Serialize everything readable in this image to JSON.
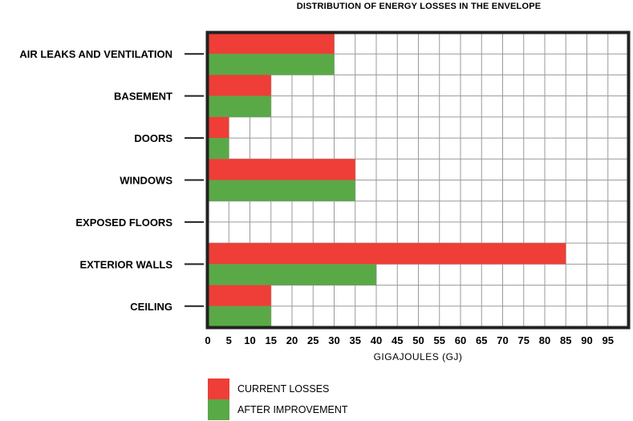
{
  "chart_data": {
    "type": "bar",
    "orientation": "horizontal",
    "title": "DISTRIBUTION OF ENERGY LOSSES IN THE ENVELOPE",
    "xlabel": "GIGAJOULES (GJ)",
    "ylabel": "",
    "xlim": [
      0,
      100
    ],
    "xticks": [
      0,
      5,
      10,
      15,
      20,
      25,
      30,
      35,
      40,
      45,
      50,
      55,
      60,
      65,
      70,
      75,
      80,
      85,
      90,
      95
    ],
    "grid": true,
    "legend_position": "bottom",
    "categories": [
      "AIR LEAKS AND VENTILATION",
      "BASEMENT",
      "DOORS",
      "WINDOWS",
      "EXPOSED FLOORS",
      "EXTERIOR WALLS",
      "CEILING"
    ],
    "series": [
      {
        "name": "CURRENT LOSSES",
        "color": "#ee3e37",
        "values": [
          30,
          15,
          5,
          35,
          0,
          85,
          15
        ]
      },
      {
        "name": "AFTER IMPROVEMENT",
        "color": "#5aa947",
        "values": [
          30,
          15,
          5,
          35,
          0,
          40,
          15
        ]
      }
    ]
  }
}
